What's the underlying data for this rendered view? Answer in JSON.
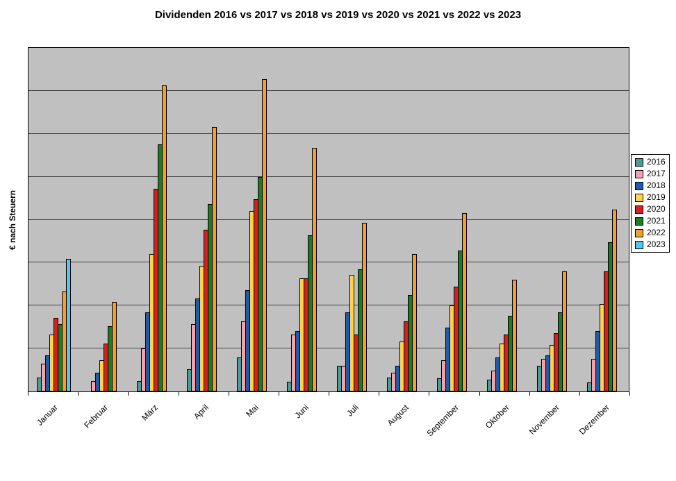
{
  "chart_data": {
    "type": "bar",
    "title": "Dividenden 2016 vs 2017 vs 2018 vs 2019 vs 2020 vs 2021 vs 2022 vs 2023",
    "xlabel": "",
    "ylabel": "€ nach Steuern",
    "categories": [
      "Januar",
      "Februar",
      "März",
      "April",
      "Mai",
      "Juni",
      "Juli",
      "August",
      "September",
      "Oktober",
      "November",
      "Dezember"
    ],
    "series": [
      {
        "name": "2016",
        "color": "#4D9B96",
        "values": [
          4,
          0,
          3,
          6.5,
          10,
          2.8,
          7.5,
          4,
          3.8,
          3.4,
          7.5,
          2.6
        ]
      },
      {
        "name": "2017",
        "color": "#F2A2AC",
        "values": [
          8,
          3,
          12.5,
          19.5,
          20.5,
          16.5,
          7.5,
          5.5,
          9,
          6,
          9.5,
          9.5
        ]
      },
      {
        "name": "2018",
        "color": "#1F5BA9",
        "values": [
          10.5,
          5.5,
          23,
          27,
          29.5,
          17.5,
          23,
          7.5,
          18.5,
          10,
          10.5,
          17.5
        ]
      },
      {
        "name": "2019",
        "color": "#FFD24D",
        "values": [
          16.5,
          9,
          40,
          36.5,
          52.5,
          33,
          34,
          14.5,
          25,
          14,
          13.5,
          25.5
        ]
      },
      {
        "name": "2020",
        "color": "#D42020",
        "values": [
          21.5,
          14,
          59,
          47,
          56,
          33,
          16.5,
          20.5,
          30.5,
          16.5,
          17,
          35
        ]
      },
      {
        "name": "2021",
        "color": "#1E7B24",
        "values": [
          19.5,
          19,
          72,
          54.5,
          62.5,
          45.5,
          35.5,
          28,
          41,
          22,
          23,
          43.5
        ]
      },
      {
        "name": "2022",
        "color": "#EF9F33",
        "values": [
          29,
          26,
          89,
          77,
          91,
          71,
          49,
          40,
          52,
          32.5,
          35,
          53
        ]
      },
      {
        "name": "2023",
        "color": "#54C6EF",
        "values": [
          38.5,
          0,
          0,
          0,
          0,
          0,
          0,
          0,
          0,
          0,
          0,
          0
        ]
      }
    ],
    "ylim": [
      0,
      100
    ],
    "y_tick_labels_visible": false,
    "gridline_divisions": 8,
    "grid": true,
    "legend_position": "right",
    "colors": {
      "plot_background": "#C0C0C0",
      "gridline": "#404040",
      "axis": "#000000"
    }
  }
}
